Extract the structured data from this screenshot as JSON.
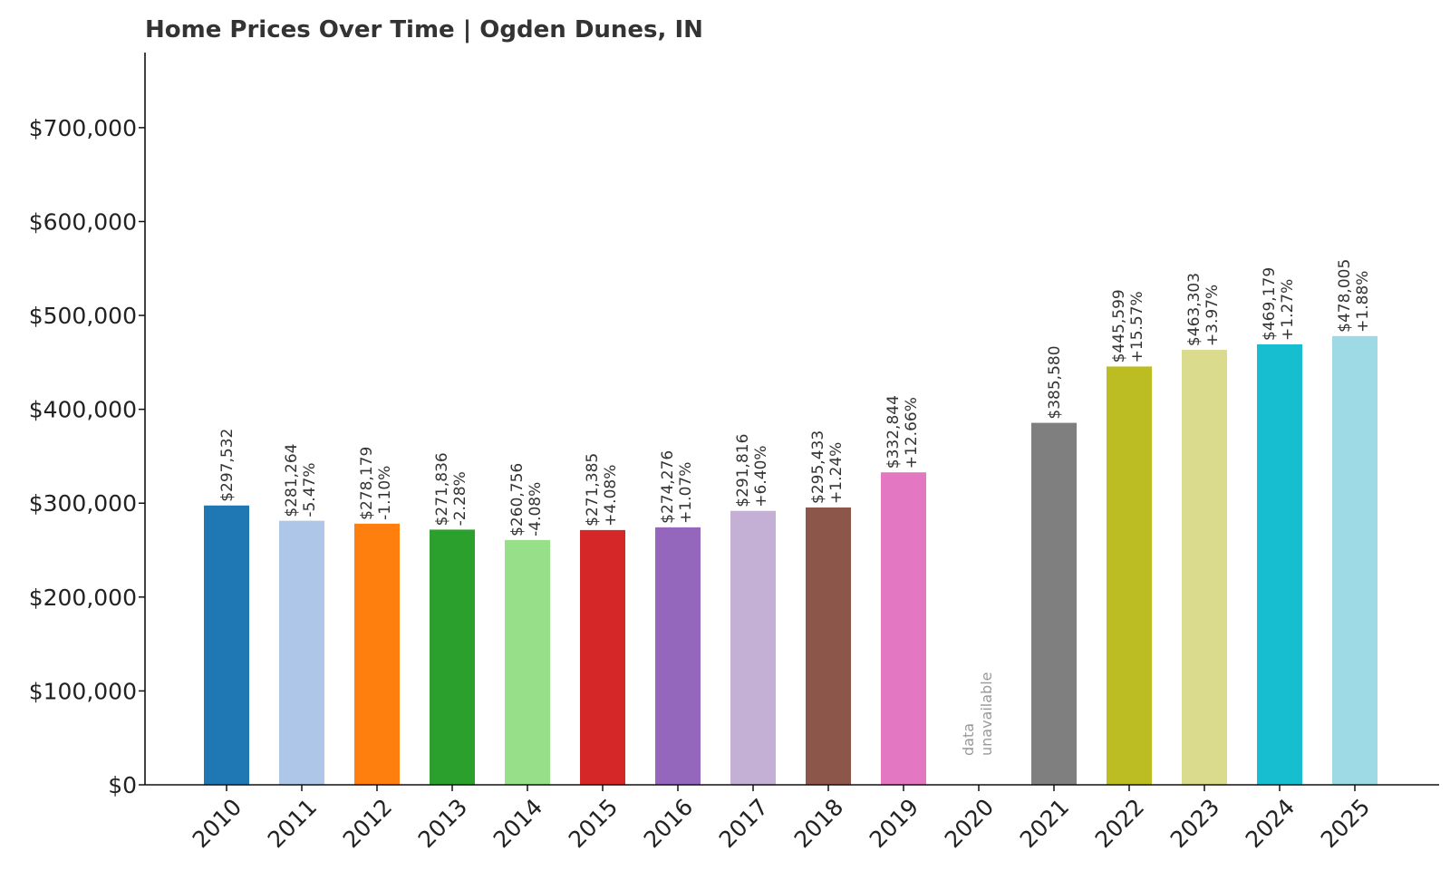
{
  "chart_data": {
    "type": "bar",
    "title": "Home Prices Over Time | Ogden Dunes, IN",
    "xlabel": "",
    "ylabel": "",
    "ylim": [
      0,
      780000
    ],
    "y_ticks": [
      {
        "value": 0,
        "label": "$0"
      },
      {
        "value": 100000,
        "label": "$100,000"
      },
      {
        "value": 200000,
        "label": "$200,000"
      },
      {
        "value": 300000,
        "label": "$300,000"
      },
      {
        "value": 400000,
        "label": "$400,000"
      },
      {
        "value": 500000,
        "label": "$500,000"
      },
      {
        "value": 600000,
        "label": "$600,000"
      },
      {
        "value": 700000,
        "label": "$700,000"
      }
    ],
    "bars": [
      {
        "category": "2010",
        "value": 297532,
        "price_label": "$297,532",
        "change_label": "",
        "color": "#1f77b4"
      },
      {
        "category": "2011",
        "value": 281264,
        "price_label": "$281,264",
        "change_label": "-5.47%",
        "color": "#aec7e8"
      },
      {
        "category": "2012",
        "value": 278179,
        "price_label": "$278,179",
        "change_label": "-1.10%",
        "color": "#ff7f0e"
      },
      {
        "category": "2013",
        "value": 271836,
        "price_label": "$271,836",
        "change_label": "-2.28%",
        "color": "#2ca02c"
      },
      {
        "category": "2014",
        "value": 260756,
        "price_label": "$260,756",
        "change_label": "-4.08%",
        "color": "#98df8a"
      },
      {
        "category": "2015",
        "value": 271385,
        "price_label": "$271,385",
        "change_label": "+4.08%",
        "color": "#d62728"
      },
      {
        "category": "2016",
        "value": 274276,
        "price_label": "$274,276",
        "change_label": "+1.07%",
        "color": "#9467bd"
      },
      {
        "category": "2017",
        "value": 291816,
        "price_label": "$291,816",
        "change_label": "+6.40%",
        "color": "#c5b0d5"
      },
      {
        "category": "2018",
        "value": 295433,
        "price_label": "$295,433",
        "change_label": "+1.24%",
        "color": "#8c564b"
      },
      {
        "category": "2019",
        "value": 332844,
        "price_label": "$332,844",
        "change_label": "+12.66%",
        "color": "#e377c2"
      },
      {
        "category": "2020",
        "value": null,
        "price_label": "data",
        "change_label": "unavailable",
        "color": "#f7b6d2"
      },
      {
        "category": "2021",
        "value": 385580,
        "price_label": "$385,580",
        "change_label": "",
        "color": "#7f7f7f"
      },
      {
        "category": "2022",
        "value": 445599,
        "price_label": "$445,599",
        "change_label": "+15.57%",
        "color": "#bcbd22"
      },
      {
        "category": "2023",
        "value": 463303,
        "price_label": "$463,303",
        "change_label": "+3.97%",
        "color": "#dbdb8d"
      },
      {
        "category": "2024",
        "value": 469179,
        "price_label": "$469,179",
        "change_label": "+1.27%",
        "color": "#17becf"
      },
      {
        "category": "2025",
        "value": 478005,
        "price_label": "$478,005",
        "change_label": "+1.88%",
        "color": "#9edae5"
      }
    ]
  }
}
